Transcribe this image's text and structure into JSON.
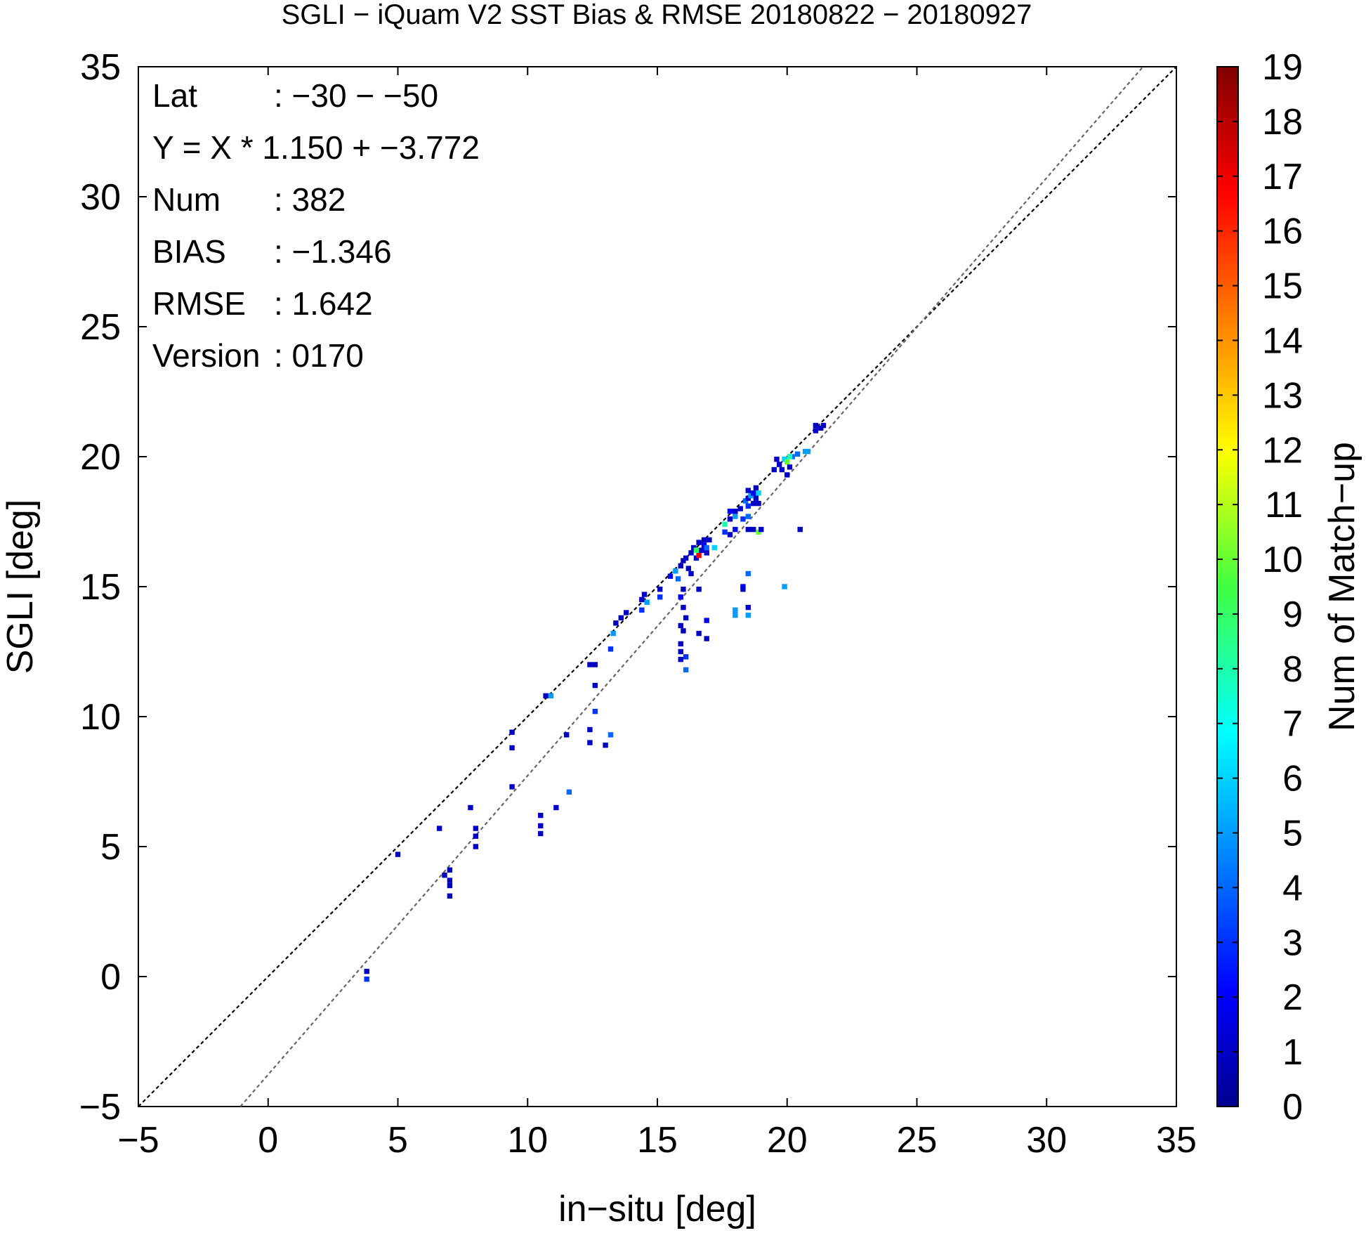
{
  "chart_data": {
    "type": "heatmap",
    "title": "SGLI − iQuam V2 SST Bias & RMSE 20180822 − 20180927",
    "xlabel": "in−situ [deg]",
    "ylabel": "SGLI [deg]",
    "xlim": [
      -5,
      35
    ],
    "ylim": [
      -5,
      35
    ],
    "xticks": [
      "−5",
      "0",
      "5",
      "10",
      "15",
      "20",
      "25",
      "30",
      "35"
    ],
    "yticks": [
      "−5",
      "0",
      "5",
      "10",
      "15",
      "20",
      "25",
      "30",
      "35"
    ],
    "grid": false,
    "stats": [
      {
        "label": "Lat",
        "value": ": −30 − −50"
      },
      {
        "label": "Y = X * 1.150 + −3.772",
        "value": ""
      },
      {
        "label": "Num",
        "value": ": 382"
      },
      {
        "label": "BIAS",
        "value": ": −1.346"
      },
      {
        "label": "RMSE",
        "value": ": 1.642"
      },
      {
        "label": "Version",
        "value": ": 0170"
      }
    ],
    "reference_lines": [
      {
        "name": "one-to-one",
        "slope": 1.0,
        "intercept": 0.0,
        "color": "#000000"
      },
      {
        "name": "regression",
        "slope": 1.15,
        "intercept": -3.772,
        "color": "#666666"
      }
    ],
    "colorbar": {
      "label": "Num of Match−up",
      "min": 0,
      "max": 19,
      "ticks": [
        "0",
        "1",
        "2",
        "3",
        "4",
        "5",
        "6",
        "7",
        "8",
        "9",
        "10",
        "11",
        "12",
        "13",
        "14",
        "15",
        "16",
        "17",
        "18",
        "19"
      ]
    },
    "points": [
      [
        3.8,
        0.2,
        1
      ],
      [
        3.8,
        -0.1,
        3
      ],
      [
        5.0,
        4.7,
        1
      ],
      [
        6.6,
        5.7,
        1
      ],
      [
        6.8,
        3.9,
        1
      ],
      [
        7.0,
        4.1,
        1
      ],
      [
        7.0,
        3.7,
        1
      ],
      [
        7.0,
        3.5,
        1
      ],
      [
        7.0,
        3.1,
        1
      ],
      [
        7.8,
        6.5,
        1
      ],
      [
        8.0,
        5.7,
        1
      ],
      [
        8.0,
        5.4,
        1
      ],
      [
        8.0,
        5.0,
        1
      ],
      [
        9.4,
        9.4,
        1
      ],
      [
        9.4,
        8.8,
        1
      ],
      [
        9.4,
        7.3,
        1
      ],
      [
        10.5,
        6.2,
        1
      ],
      [
        10.5,
        5.8,
        1
      ],
      [
        10.5,
        5.5,
        1
      ],
      [
        10.7,
        10.8,
        1
      ],
      [
        10.9,
        10.8,
        5
      ],
      [
        11.1,
        6.5,
        1
      ],
      [
        11.5,
        9.3,
        1
      ],
      [
        11.6,
        7.1,
        4
      ],
      [
        12.4,
        12.0,
        1
      ],
      [
        12.6,
        12.0,
        1
      ],
      [
        12.4,
        9.5,
        1
      ],
      [
        12.4,
        9.0,
        1
      ],
      [
        12.6,
        11.2,
        1
      ],
      [
        12.6,
        10.2,
        3
      ],
      [
        13.0,
        8.9,
        1
      ],
      [
        13.2,
        9.3,
        4
      ],
      [
        13.3,
        13.2,
        5
      ],
      [
        13.2,
        12.6,
        3
      ],
      [
        13.4,
        13.6,
        1
      ],
      [
        13.6,
        13.8,
        1
      ],
      [
        13.8,
        14.0,
        1
      ],
      [
        14.4,
        14.5,
        1
      ],
      [
        14.5,
        14.7,
        1
      ],
      [
        14.6,
        14.4,
        5
      ],
      [
        14.4,
        14.1,
        3
      ],
      [
        15.1,
        14.9,
        1
      ],
      [
        15.1,
        14.6,
        3
      ],
      [
        15.5,
        15.4,
        2
      ],
      [
        15.7,
        15.6,
        5
      ],
      [
        15.8,
        15.3,
        4
      ],
      [
        15.9,
        15.8,
        1
      ],
      [
        16.0,
        16.0,
        1
      ],
      [
        16.1,
        16.1,
        1
      ],
      [
        16.2,
        15.7,
        1
      ],
      [
        16.3,
        15.5,
        1
      ],
      [
        16.3,
        16.3,
        1
      ],
      [
        16.4,
        16.5,
        1
      ],
      [
        16.5,
        16.4,
        9
      ],
      [
        16.5,
        16.1,
        1
      ],
      [
        16.6,
        16.2,
        17
      ],
      [
        16.6,
        16.7,
        1
      ],
      [
        16.7,
        16.4,
        1
      ],
      [
        16.8,
        16.6,
        2
      ],
      [
        16.8,
        16.8,
        1
      ],
      [
        16.9,
        16.5,
        4
      ],
      [
        16.9,
        16.3,
        1
      ],
      [
        16.0,
        14.9,
        1
      ],
      [
        15.9,
        14.6,
        2
      ],
      [
        16.0,
        14.2,
        1
      ],
      [
        15.9,
        13.5,
        1
      ],
      [
        16.0,
        13.3,
        1
      ],
      [
        15.9,
        12.8,
        1
      ],
      [
        15.9,
        12.5,
        1
      ],
      [
        15.9,
        12.2,
        1
      ],
      [
        16.1,
        12.3,
        3
      ],
      [
        16.1,
        11.8,
        4
      ],
      [
        16.1,
        13.8,
        1
      ],
      [
        16.6,
        14.9,
        1
      ],
      [
        16.6,
        13.2,
        1
      ],
      [
        16.9,
        13.0,
        1
      ],
      [
        16.9,
        13.7,
        2
      ],
      [
        17.0,
        16.8,
        1
      ],
      [
        17.2,
        16.5,
        6
      ],
      [
        17.6,
        17.1,
        3
      ],
      [
        17.6,
        17.4,
        8
      ],
      [
        17.8,
        17.6,
        1
      ],
      [
        17.8,
        17.9,
        2
      ],
      [
        18.0,
        17.7,
        5
      ],
      [
        18.0,
        17.9,
        1
      ],
      [
        18.2,
        18.0,
        1
      ],
      [
        18.3,
        17.6,
        3
      ],
      [
        18.4,
        18.3,
        4
      ],
      [
        18.5,
        18.4,
        1
      ],
      [
        18.5,
        18.1,
        3
      ],
      [
        18.5,
        18.7,
        1
      ],
      [
        18.6,
        18.5,
        5
      ],
      [
        18.7,
        18.2,
        1
      ],
      [
        18.7,
        18.6,
        2
      ],
      [
        18.8,
        18.4,
        1
      ],
      [
        18.8,
        18.8,
        1
      ],
      [
        18.9,
        18.6,
        6
      ],
      [
        18.9,
        18.2,
        1
      ],
      [
        18.5,
        17.2,
        1
      ],
      [
        18.7,
        17.2,
        1
      ],
      [
        18.9,
        17.1,
        10
      ],
      [
        19.0,
        17.2,
        1
      ],
      [
        18.0,
        17.2,
        2
      ],
      [
        17.8,
        17.0,
        1
      ],
      [
        18.5,
        17.7,
        4
      ],
      [
        18.5,
        15.5,
        4
      ],
      [
        18.3,
        15.0,
        2
      ],
      [
        18.3,
        14.9,
        1
      ],
      [
        18.5,
        14.2,
        1
      ],
      [
        18.0,
        14.1,
        5
      ],
      [
        18.0,
        13.9,
        5
      ],
      [
        18.5,
        13.9,
        5
      ],
      [
        19.6,
        19.9,
        1
      ],
      [
        19.7,
        19.7,
        1
      ],
      [
        19.8,
        19.5,
        1
      ],
      [
        19.9,
        19.9,
        6
      ],
      [
        20.0,
        19.8,
        10
      ],
      [
        20.1,
        19.6,
        1
      ],
      [
        20.0,
        19.3,
        1
      ],
      [
        20.2,
        20.0,
        4
      ],
      [
        20.4,
        20.1,
        4
      ],
      [
        20.7,
        20.2,
        5
      ],
      [
        20.8,
        20.2,
        5
      ],
      [
        20.1,
        20.0,
        8
      ],
      [
        19.5,
        19.5,
        1
      ],
      [
        19.9,
        15.0,
        5
      ],
      [
        20.5,
        17.2,
        1
      ],
      [
        21.1,
        21.0,
        1
      ],
      [
        21.1,
        21.2,
        1
      ],
      [
        21.3,
        21.1,
        1
      ],
      [
        21.4,
        21.2,
        1
      ]
    ]
  }
}
